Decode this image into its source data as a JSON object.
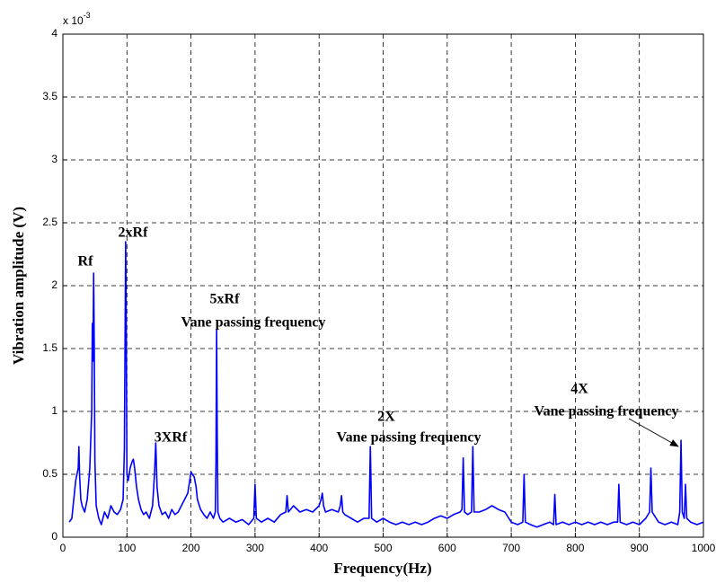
{
  "chart_data": {
    "type": "line",
    "x_label": "Frequency(Hz)",
    "y_label": "Vibration amplitude (V)",
    "y_multiplier": "x 10",
    "y_multiplier_exponent": "-3",
    "color": "#0000ff",
    "grid": true,
    "xlim": [
      0,
      1000
    ],
    "xticks": [
      0,
      100,
      200,
      300,
      400,
      500,
      600,
      700,
      800,
      900,
      1000
    ],
    "ylim": [
      0,
      4
    ],
    "yticks": [
      0,
      0.5,
      1,
      1.5,
      2,
      2.5,
      3,
      3.5,
      4
    ],
    "annotations": [
      "Rf",
      "2xRf",
      "3XRf",
      "5xRf",
      "Vane passing frequency",
      "2X",
      "Vane passing frequency",
      "4X",
      "Vane passing frequency"
    ],
    "x": [
      10,
      14,
      18,
      20,
      22,
      24,
      25,
      26,
      28,
      30,
      34,
      38,
      42,
      45,
      46,
      47,
      48,
      49,
      50,
      52,
      56,
      60,
      65,
      70,
      75,
      80,
      85,
      90,
      94,
      96,
      97,
      98,
      99,
      100,
      102,
      105,
      108,
      110,
      112,
      115,
      118,
      122,
      126,
      130,
      135,
      140,
      143,
      145,
      147,
      150,
      155,
      160,
      165,
      170,
      175,
      180,
      185,
      190,
      195,
      198,
      200,
      202,
      205,
      208,
      210,
      215,
      220,
      225,
      230,
      235,
      238,
      239,
      240,
      241,
      242,
      245,
      250,
      260,
      270,
      280,
      290,
      298,
      300,
      302,
      310,
      320,
      330,
      340,
      348,
      350,
      352,
      360,
      370,
      380,
      390,
      400,
      403,
      405,
      407,
      410,
      420,
      430,
      433,
      435,
      437,
      440,
      450,
      460,
      470,
      478,
      480,
      482,
      490,
      500,
      510,
      520,
      530,
      540,
      550,
      560,
      570,
      580,
      590,
      600,
      610,
      620,
      623,
      625,
      627,
      632,
      638,
      640,
      642,
      650,
      660,
      670,
      680,
      690,
      700,
      710,
      718,
      720,
      722,
      730,
      740,
      750,
      760,
      766,
      768,
      770,
      780,
      790,
      800,
      810,
      820,
      830,
      840,
      850,
      860,
      866,
      868,
      870,
      880,
      890,
      900,
      910,
      916,
      918,
      920,
      930,
      940,
      950,
      960,
      963,
      965,
      967,
      970,
      972,
      974,
      980,
      990,
      1000
    ],
    "values": [
      0.12,
      0.15,
      0.35,
      0.45,
      0.5,
      0.55,
      0.72,
      0.5,
      0.3,
      0.25,
      0.2,
      0.3,
      0.55,
      1.0,
      1.7,
      1.4,
      2.1,
      1.5,
      0.6,
      0.25,
      0.15,
      0.1,
      0.2,
      0.15,
      0.25,
      0.2,
      0.18,
      0.22,
      0.3,
      0.7,
      1.5,
      2.35,
      1.6,
      0.5,
      0.45,
      0.55,
      0.6,
      0.62,
      0.55,
      0.4,
      0.3,
      0.22,
      0.18,
      0.2,
      0.15,
      0.25,
      0.5,
      0.75,
      0.4,
      0.25,
      0.18,
      0.2,
      0.15,
      0.22,
      0.18,
      0.2,
      0.25,
      0.3,
      0.35,
      0.45,
      0.52,
      0.5,
      0.48,
      0.4,
      0.3,
      0.22,
      0.18,
      0.15,
      0.2,
      0.15,
      0.2,
      0.6,
      1.65,
      0.8,
      0.2,
      0.15,
      0.12,
      0.15,
      0.12,
      0.14,
      0.1,
      0.15,
      0.42,
      0.15,
      0.12,
      0.15,
      0.12,
      0.18,
      0.2,
      0.33,
      0.2,
      0.25,
      0.2,
      0.22,
      0.2,
      0.25,
      0.3,
      0.35,
      0.25,
      0.2,
      0.22,
      0.2,
      0.25,
      0.33,
      0.2,
      0.18,
      0.15,
      0.12,
      0.15,
      0.15,
      0.72,
      0.15,
      0.12,
      0.15,
      0.12,
      0.1,
      0.12,
      0.1,
      0.12,
      0.1,
      0.12,
      0.15,
      0.17,
      0.15,
      0.18,
      0.2,
      0.22,
      0.63,
      0.2,
      0.18,
      0.2,
      0.72,
      0.2,
      0.2,
      0.22,
      0.25,
      0.22,
      0.2,
      0.12,
      0.1,
      0.12,
      0.5,
      0.12,
      0.1,
      0.08,
      0.1,
      0.12,
      0.1,
      0.34,
      0.1,
      0.12,
      0.1,
      0.12,
      0.1,
      0.12,
      0.1,
      0.12,
      0.1,
      0.12,
      0.12,
      0.42,
      0.12,
      0.1,
      0.12,
      0.1,
      0.15,
      0.2,
      0.55,
      0.2,
      0.12,
      0.1,
      0.12,
      0.1,
      0.2,
      0.77,
      0.2,
      0.15,
      0.42,
      0.15,
      0.12,
      0.1,
      0.12
    ]
  }
}
